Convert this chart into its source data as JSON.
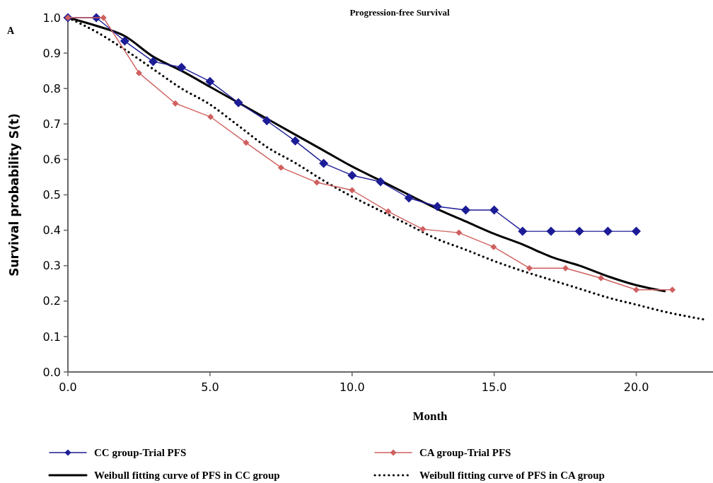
{
  "chart_data": {
    "type": "line",
    "title": "Progression-free Survival",
    "xlabel": "Month",
    "ylabel": "Survival probability S(t)",
    "annotations": [
      "A"
    ],
    "xlim": [
      0,
      22.7
    ],
    "xticks": [
      {
        "value": 0,
        "label": "0.0"
      },
      {
        "value": 5,
        "label": "5.0"
      },
      {
        "value": 10,
        "label": "10.0"
      },
      {
        "value": 15,
        "label": "15.0"
      },
      {
        "value": 20,
        "label": "20.0"
      }
    ],
    "ylim": [
      0,
      1
    ],
    "yticks": [
      {
        "value": 0,
        "label": "0.0"
      },
      {
        "value": 0.1,
        "label": "0.1"
      },
      {
        "value": 0.2,
        "label": "0.2"
      },
      {
        "value": 0.3,
        "label": "0.3"
      },
      {
        "value": 0.4,
        "label": "0.4"
      },
      {
        "value": 0.5,
        "label": "0.5"
      },
      {
        "value": 0.6,
        "label": "0.6"
      },
      {
        "value": 0.7,
        "label": "0.7"
      },
      {
        "value": 0.8,
        "label": "0.8"
      },
      {
        "value": 0.9,
        "label": "0.9"
      },
      {
        "value": 1,
        "label": "1.0"
      }
    ],
    "grid": false,
    "legend": "bottom",
    "series": [
      {
        "name": "CC group-Trial PFS",
        "color": "#1c1c96",
        "marker": "diamond",
        "line_style": "solid",
        "x": [
          0,
          1,
          2,
          3,
          4,
          5,
          6,
          7,
          8,
          9,
          10,
          11,
          12,
          13,
          14,
          15,
          16,
          17,
          18,
          19,
          20
        ],
        "values": [
          1.0,
          1.0,
          0.934,
          0.876,
          0.86,
          0.82,
          0.76,
          0.709,
          0.652,
          0.589,
          0.555,
          0.537,
          0.491,
          0.467,
          0.457,
          0.457,
          0.397,
          0.397,
          0.397,
          0.397,
          0.397
        ]
      },
      {
        "name": "CA group-Trial PFS",
        "color": "#d06060",
        "marker": "diamond",
        "line_style": "solid",
        "x": [
          0,
          1.25,
          2.5,
          3.78,
          5.02,
          6.27,
          7.5,
          8.76,
          10,
          11.27,
          12.49,
          13.76,
          14.98,
          16.24,
          17.51,
          18.76,
          20,
          21.27
        ],
        "values": [
          1.0,
          1.0,
          0.844,
          0.758,
          0.72,
          0.647,
          0.577,
          0.535,
          0.513,
          0.453,
          0.403,
          0.393,
          0.353,
          0.293,
          0.293,
          0.265,
          0.232,
          0.232
        ]
      },
      {
        "name": "Weibull fitting curve of PFS in CC group",
        "color": "#000000",
        "marker": "none",
        "line_style": "solid",
        "x": [
          0,
          1,
          2,
          3,
          4,
          5,
          6,
          7,
          8,
          9,
          10,
          11,
          12,
          13,
          14,
          15,
          16,
          17,
          18,
          19,
          20,
          21
        ],
        "values": [
          1.0,
          0.977,
          0.948,
          0.89,
          0.85,
          0.805,
          0.76,
          0.715,
          0.67,
          0.625,
          0.58,
          0.54,
          0.5,
          0.46,
          0.425,
          0.39,
          0.36,
          0.325,
          0.3,
          0.27,
          0.245,
          0.228
        ]
      },
      {
        "name": "Weibull fitting curve of PFS in CA group",
        "color": "#000000",
        "marker": "none",
        "line_style": "dotted",
        "x": [
          0,
          1,
          2,
          3,
          4,
          5,
          6,
          7,
          8,
          9,
          10,
          11,
          12,
          13,
          14,
          15,
          16,
          17,
          18,
          19,
          20,
          21,
          22.4
        ],
        "values": [
          1.0,
          0.96,
          0.91,
          0.855,
          0.8,
          0.755,
          0.695,
          0.635,
          0.59,
          0.54,
          0.495,
          0.455,
          0.415,
          0.375,
          0.345,
          0.313,
          0.285,
          0.26,
          0.235,
          0.21,
          0.19,
          0.17,
          0.148
        ]
      }
    ]
  }
}
